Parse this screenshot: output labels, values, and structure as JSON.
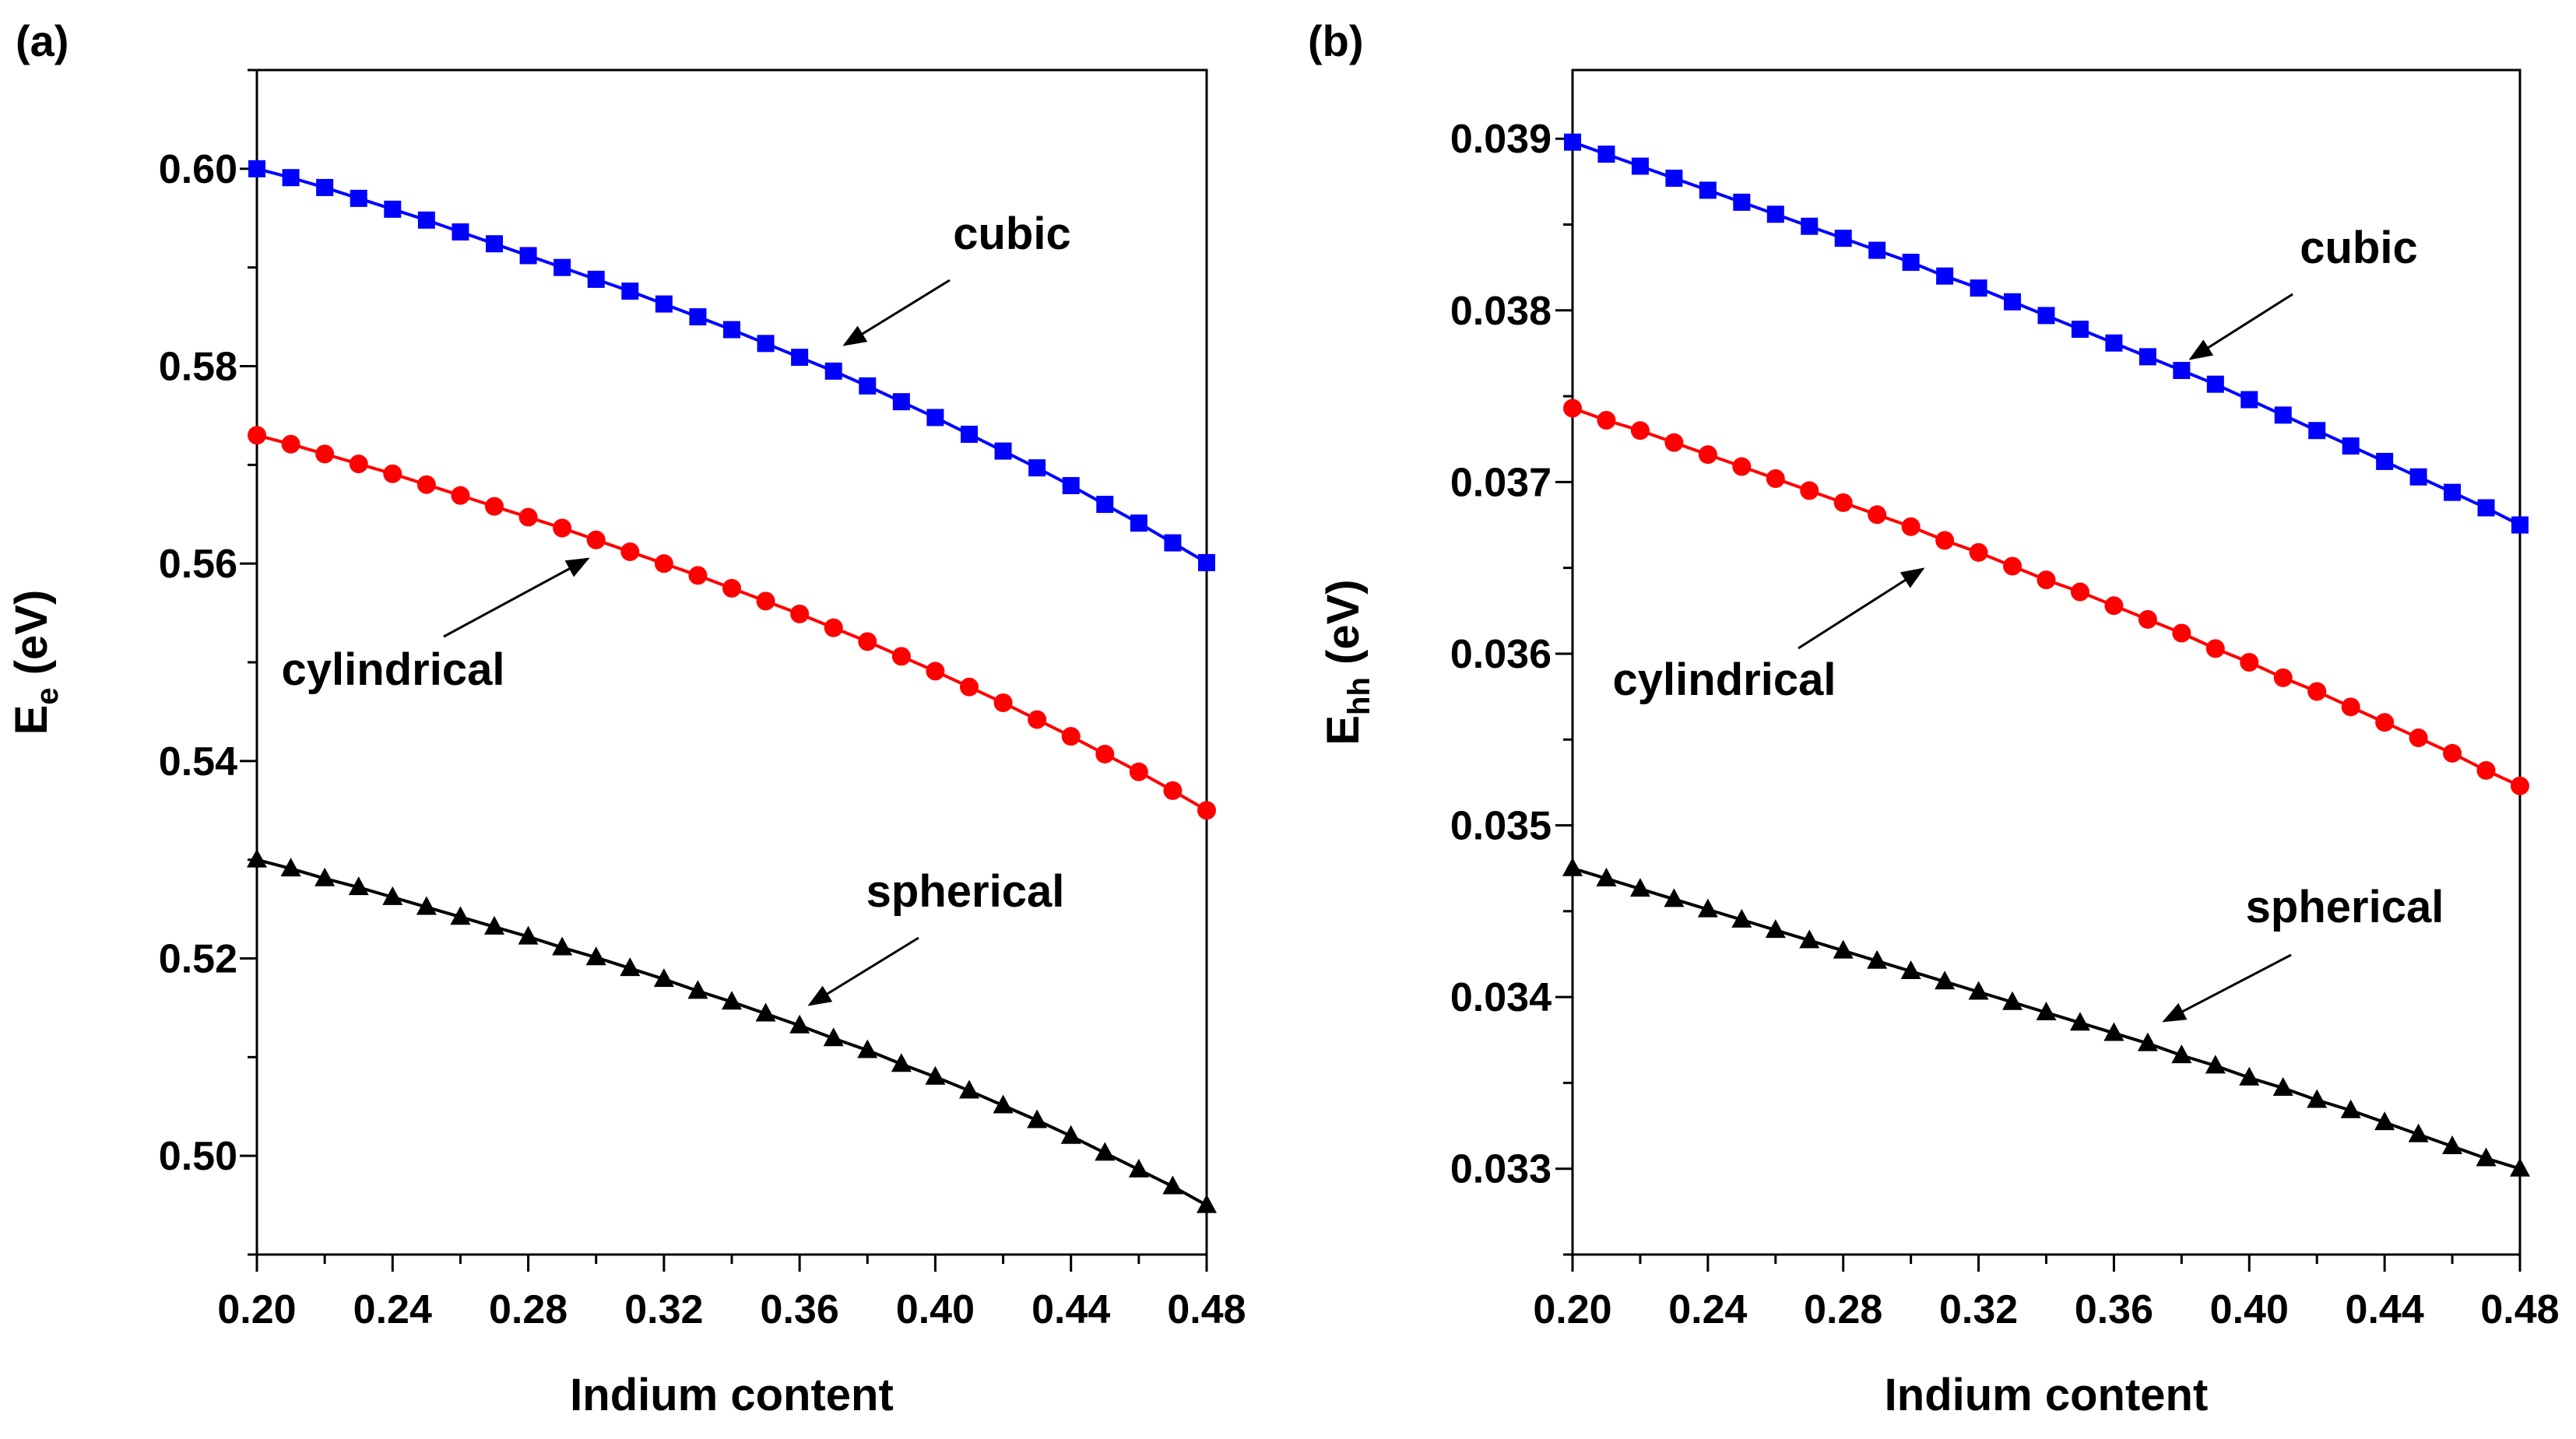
{
  "chart_data": [
    {
      "panel_label": "(a)",
      "type": "line",
      "xlabel": "Indium content",
      "ylabel": "E",
      "ylabel_sub": "e",
      "ylabel_unit": " (eV)",
      "xlim": [
        0.2,
        0.48
      ],
      "ylim": [
        0.49,
        0.61
      ],
      "xticks": [
        0.2,
        0.24,
        0.28,
        0.32,
        0.36,
        0.4,
        0.44,
        0.48
      ],
      "xtick_labels": [
        "0.20",
        "0.24",
        "0.28",
        "0.32",
        "0.36",
        "0.40",
        "0.44",
        "0.48"
      ],
      "yticks": [
        0.5,
        0.52,
        0.54,
        0.56,
        0.58,
        0.6
      ],
      "ytick_labels": [
        "0.50",
        "0.52",
        "0.54",
        "0.56",
        "0.58",
        "0.60"
      ],
      "x": [
        0.2,
        0.21,
        0.22,
        0.23,
        0.24,
        0.25,
        0.26,
        0.27,
        0.28,
        0.29,
        0.3,
        0.31,
        0.32,
        0.33,
        0.34,
        0.35,
        0.36,
        0.37,
        0.38,
        0.39,
        0.4,
        0.41,
        0.42,
        0.43,
        0.44,
        0.45,
        0.46,
        0.47,
        0.48
      ],
      "series": [
        {
          "name": "cubic",
          "color": "#0000ff",
          "marker": "square",
          "values": [
            0.6,
            0.5991,
            0.5981,
            0.597,
            0.5959,
            0.5948,
            0.5936,
            0.5924,
            0.5912,
            0.59,
            0.5888,
            0.5876,
            0.5863,
            0.585,
            0.5837,
            0.5823,
            0.5809,
            0.5795,
            0.578,
            0.5764,
            0.5748,
            0.5731,
            0.5714,
            0.5697,
            0.5679,
            0.566,
            0.5641,
            0.5621,
            0.5601
          ]
        },
        {
          "name": "cylindrical",
          "color": "#ff0000",
          "marker": "circle",
          "values": [
            0.573,
            0.5721,
            0.5711,
            0.5701,
            0.5691,
            0.568,
            0.5669,
            0.5658,
            0.5647,
            0.5636,
            0.5624,
            0.5612,
            0.56,
            0.5588,
            0.5575,
            0.5562,
            0.5549,
            0.5535,
            0.5521,
            0.5506,
            0.5491,
            0.5475,
            0.5459,
            0.5442,
            0.5425,
            0.5407,
            0.5389,
            0.537,
            0.535
          ]
        },
        {
          "name": "spherical",
          "color": "#000000",
          "marker": "triangle",
          "values": [
            0.53,
            0.5291,
            0.5281,
            0.5272,
            0.5262,
            0.5252,
            0.5242,
            0.5232,
            0.5222,
            0.5211,
            0.5201,
            0.519,
            0.5179,
            0.5167,
            0.5156,
            0.5144,
            0.5132,
            0.5119,
            0.5107,
            0.5093,
            0.508,
            0.5066,
            0.5051,
            0.5036,
            0.502,
            0.5003,
            0.4986,
            0.4969,
            0.495
          ]
        }
      ],
      "annotations": [
        {
          "text": "cubic",
          "series": "cubic",
          "x": 0.37
        },
        {
          "text": "cylindrical",
          "series": "cylindrical",
          "x": 0.34
        },
        {
          "text": "spherical",
          "series": "spherical",
          "x": 0.37
        }
      ]
    },
    {
      "panel_label": "(b)",
      "type": "line",
      "xlabel": "Indium content",
      "ylabel": "E",
      "ylabel_sub": "hh",
      "ylabel_unit": " (eV)",
      "xlim": [
        0.2,
        0.48
      ],
      "ylim": [
        0.0325,
        0.0394
      ],
      "xticks": [
        0.2,
        0.24,
        0.28,
        0.32,
        0.36,
        0.4,
        0.44,
        0.48
      ],
      "xtick_labels": [
        "0.20",
        "0.24",
        "0.28",
        "0.32",
        "0.36",
        "0.40",
        "0.44",
        "0.48"
      ],
      "yticks": [
        0.033,
        0.034,
        0.035,
        0.036,
        0.037,
        0.038,
        0.039
      ],
      "ytick_labels": [
        "0.033",
        "0.034",
        "0.035",
        "0.036",
        "0.037",
        "0.038",
        "0.039"
      ],
      "x": [
        0.2,
        0.21,
        0.22,
        0.23,
        0.24,
        0.25,
        0.26,
        0.27,
        0.28,
        0.29,
        0.3,
        0.31,
        0.32,
        0.33,
        0.34,
        0.35,
        0.36,
        0.37,
        0.38,
        0.39,
        0.4,
        0.41,
        0.42,
        0.43,
        0.44,
        0.45,
        0.46,
        0.47,
        0.48
      ],
      "series": [
        {
          "name": "cubic",
          "color": "#0000ff",
          "marker": "square",
          "values": [
            0.03898,
            0.03891,
            0.03884,
            0.03877,
            0.0387,
            0.03863,
            0.03856,
            0.03849,
            0.03842,
            0.03835,
            0.03828,
            0.0382,
            0.03813,
            0.03805,
            0.03797,
            0.03789,
            0.03781,
            0.03773,
            0.03765,
            0.03757,
            0.03748,
            0.03739,
            0.0373,
            0.03721,
            0.03712,
            0.03703,
            0.03694,
            0.03685,
            0.03675
          ]
        },
        {
          "name": "cylindrical",
          "color": "#ff0000",
          "marker": "circle",
          "values": [
            0.03743,
            0.03736,
            0.0373,
            0.03723,
            0.03716,
            0.03709,
            0.03702,
            0.03695,
            0.03688,
            0.03681,
            0.03674,
            0.03666,
            0.03659,
            0.03651,
            0.03643,
            0.03636,
            0.03628,
            0.0362,
            0.03612,
            0.03603,
            0.03595,
            0.03586,
            0.03578,
            0.03569,
            0.0356,
            0.03551,
            0.03542,
            0.03532,
            0.03523
          ]
        },
        {
          "name": "spherical",
          "color": "#000000",
          "marker": "triangle",
          "values": [
            0.03475,
            0.03469,
            0.03463,
            0.03457,
            0.03451,
            0.03445,
            0.03439,
            0.03433,
            0.03427,
            0.03421,
            0.03415,
            0.03409,
            0.03403,
            0.03397,
            0.03391,
            0.03385,
            0.03379,
            0.03373,
            0.03366,
            0.0336,
            0.03353,
            0.03347,
            0.0334,
            0.03334,
            0.03327,
            0.0332,
            0.03313,
            0.03306,
            0.033
          ]
        }
      ],
      "annotations": [
        {
          "text": "cubic",
          "series": "cubic",
          "x": 0.38
        },
        {
          "text": "cylindrical",
          "series": "cylindrical",
          "x": 0.31
        },
        {
          "text": "spherical",
          "series": "spherical",
          "x": 0.38
        }
      ]
    }
  ]
}
